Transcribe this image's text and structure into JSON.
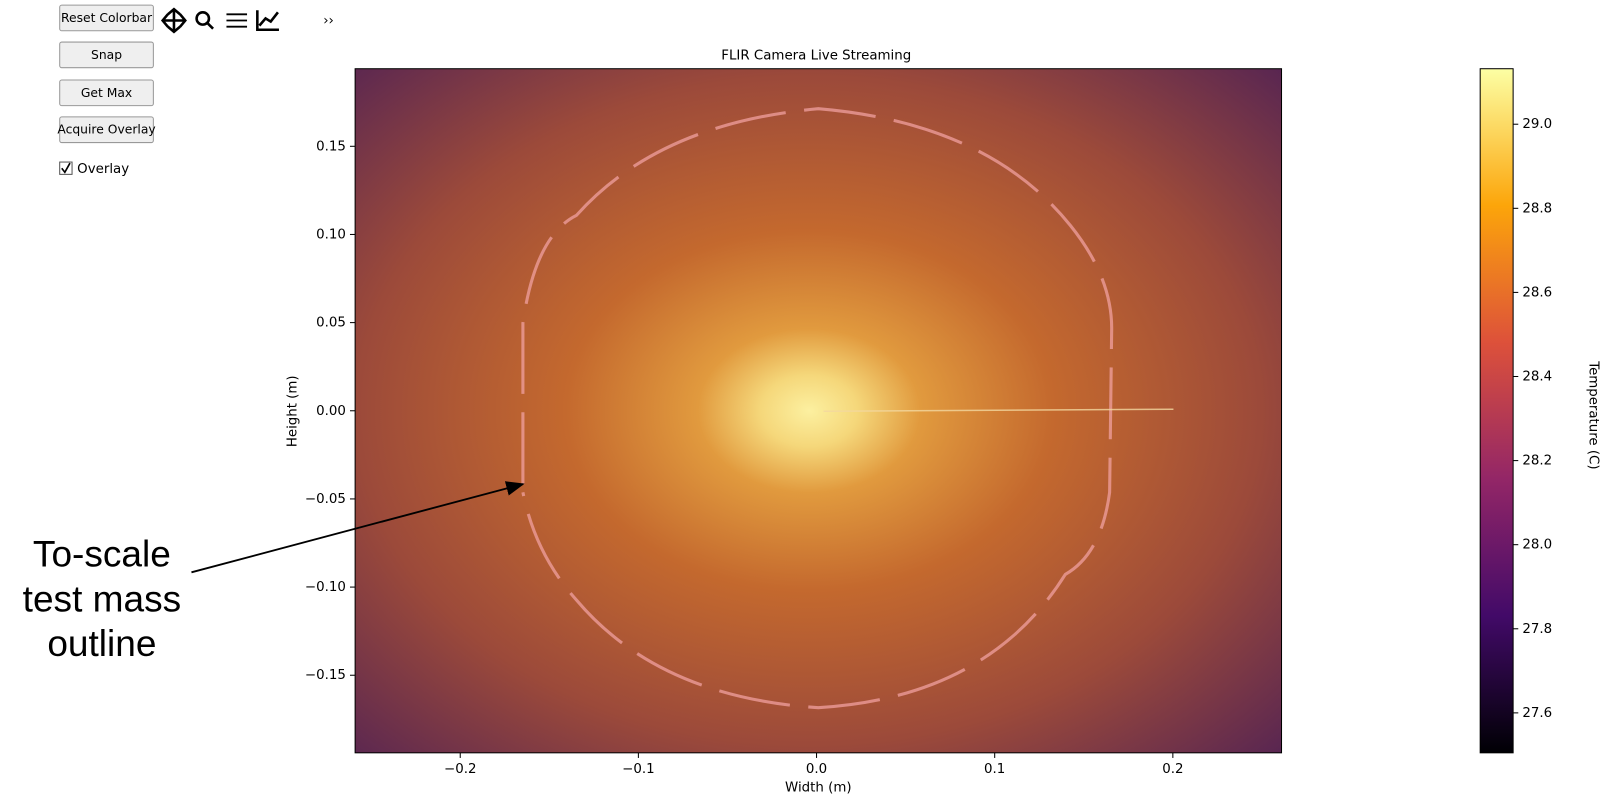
{
  "toolbar": {
    "buttons": [
      "Reset Colorbar",
      "Snap",
      "Get Max",
      "Acquire Overlay"
    ],
    "checkbox": {
      "label": "Overlay",
      "checked": true
    },
    "more": "››"
  },
  "chart_data": {
    "type": "heatmap",
    "title": "FLIR Camera Live Streaming",
    "xlabel": "Width (m)",
    "ylabel": "Height (m)",
    "xlim": [
      -0.259,
      0.261
    ],
    "ylim": [
      -0.194,
      0.194
    ],
    "xticks": [
      {
        "value": -0.2,
        "label": "−0.2"
      },
      {
        "value": -0.1,
        "label": "−0.1"
      },
      {
        "value": 0,
        "label": "0.0"
      },
      0.1,
      0.2
    ],
    "yticks": [
      {
        "value": -0.15,
        "label": "−0.15"
      },
      {
        "value": -0.1,
        "label": "−0.10"
      },
      {
        "value": -0.05,
        "label": "−0.05"
      },
      {
        "value": 0,
        "label": "0.00"
      },
      0.05,
      {
        "value": 0.1,
        "label": "0.10"
      },
      0.15
    ],
    "colorbar": {
      "label": "Temperature (C)",
      "lim": [
        27.505,
        29.132
      ],
      "ticks": [
        27.6,
        27.8,
        {
          "value": 28,
          "label": "28.0"
        },
        28.2,
        28.4,
        28.6,
        28.8,
        {
          "value": 29,
          "label": "29.0"
        }
      ],
      "colormap": [
        "#000004",
        "#420a68",
        "#932667",
        "#dd513a",
        "#fca50a",
        "#fcffa4"
      ]
    },
    "annotation": [
      "To-scale",
      "test mass",
      "outline"
    ]
  }
}
